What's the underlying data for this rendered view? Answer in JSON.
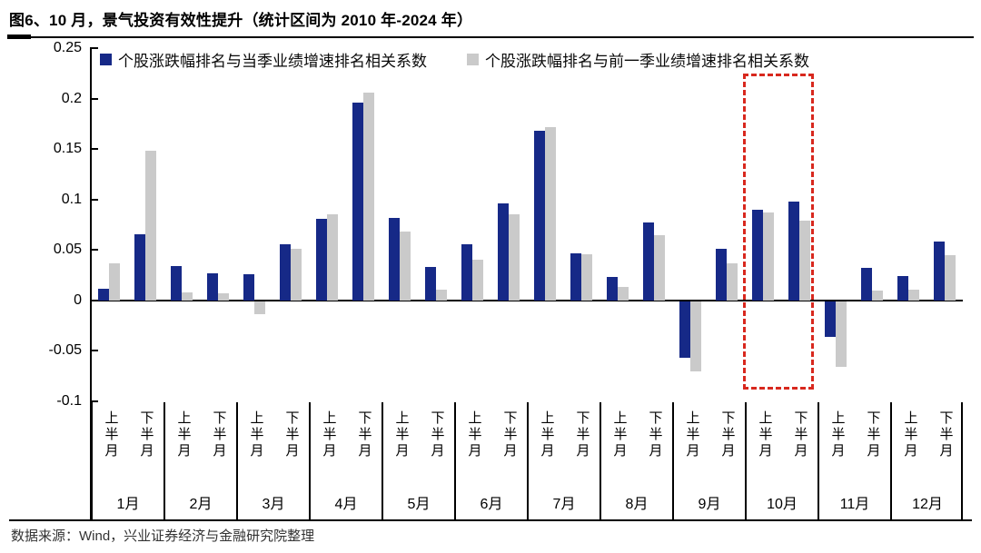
{
  "title": "图6、10 月，景气投资有效性提升（统计区间为 2010 年-2024 年）",
  "footer": "数据来源：Wind，兴业证券经济与金融研究院整理",
  "chart_data": {
    "type": "bar",
    "title": "图6、10 月，景气投资有效性提升（统计区间为 2010 年-2024 年）",
    "months": [
      "1月",
      "2月",
      "3月",
      "4月",
      "5月",
      "6月",
      "7月",
      "8月",
      "9月",
      "10月",
      "11月",
      "12月"
    ],
    "half_month_labels": [
      "上半月",
      "下半月"
    ],
    "categories": [
      "1月上半月",
      "1月下半月",
      "2月上半月",
      "2月下半月",
      "3月上半月",
      "3月下半月",
      "4月上半月",
      "4月下半月",
      "5月上半月",
      "5月下半月",
      "6月上半月",
      "6月下半月",
      "7月上半月",
      "7月下半月",
      "8月上半月",
      "8月下半月",
      "9月上半月",
      "9月下半月",
      "10月上半月",
      "10月下半月",
      "11月上半月",
      "11月下半月",
      "12月上半月",
      "12月下半月"
    ],
    "series": [
      {
        "name": "个股涨跌幅排名与当季业绩增速排名相关系数",
        "color": "#162987",
        "values": [
          0.012,
          0.066,
          0.034,
          0.027,
          0.026,
          0.056,
          0.081,
          0.196,
          0.082,
          0.033,
          0.056,
          0.096,
          0.168,
          0.047,
          0.023,
          0.077,
          -0.056,
          0.051,
          0.09,
          0.098,
          -0.035,
          0.032,
          0.024,
          0.058
        ]
      },
      {
        "name": "个股涨跌幅排名与前一季业绩增速排名相关系数",
        "color": "#cacaca",
        "values": [
          0.037,
          0.148,
          0.008,
          0.007,
          -0.013,
          0.051,
          0.085,
          0.206,
          0.068,
          0.011,
          0.04,
          0.085,
          0.172,
          0.046,
          0.013,
          0.065,
          -0.069,
          0.037,
          0.087,
          0.079,
          -0.065,
          0.01,
          0.011,
          0.045
        ]
      }
    ],
    "ylim": [
      -0.1,
      0.25
    ],
    "yticks": [
      "0.25",
      "0.2",
      "0.15",
      "0.1",
      "0.05",
      "0",
      "-0.05",
      "-0.1"
    ],
    "grid": false,
    "legend_position": "top",
    "highlight_box": {
      "month": "10月",
      "color": "#d8281e",
      "y_range": [
        -0.088,
        0.225
      ]
    }
  }
}
